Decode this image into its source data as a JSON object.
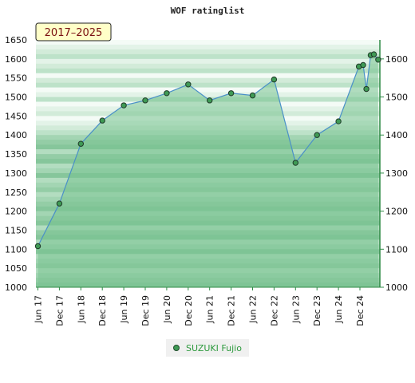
{
  "chart_data": {
    "type": "area",
    "title": "WOF ratinglist",
    "period_label": "2017–2025",
    "x_labels": [
      "Jun 17",
      "Dec 17",
      "Jun 18",
      "Dec 18",
      "Jun 19",
      "Dec 19",
      "Jun 20",
      "Dec 20",
      "Jun 21",
      "Dec 21",
      "Jun 22",
      "Dec 22",
      "Jun 23",
      "Dec 23",
      "Jun 24",
      "Dec 24"
    ],
    "y_left": {
      "min": 1000,
      "max": 1650,
      "step": 50
    },
    "y_right": {
      "min": 1000,
      "max": 1600,
      "step": 100
    },
    "grid": true,
    "legend_position": "bottom-center",
    "series": [
      {
        "name": "SUZUKI Fujio",
        "color": "#4a90c8",
        "marker_color": "#3f9a55",
        "points": [
          {
            "x": 0.0,
            "y": 1108
          },
          {
            "x": 1.0,
            "y": 1220
          },
          {
            "x": 2.0,
            "y": 1377
          },
          {
            "x": 3.0,
            "y": 1438
          },
          {
            "x": 4.0,
            "y": 1478
          },
          {
            "x": 5.0,
            "y": 1491
          },
          {
            "x": 6.0,
            "y": 1510
          },
          {
            "x": 7.0,
            "y": 1533
          },
          {
            "x": 8.0,
            "y": 1491
          },
          {
            "x": 9.0,
            "y": 1510
          },
          {
            "x": 10.0,
            "y": 1504
          },
          {
            "x": 11.0,
            "y": 1546
          },
          {
            "x": 12.0,
            "y": 1327
          },
          {
            "x": 13.0,
            "y": 1400
          },
          {
            "x": 14.0,
            "y": 1436
          },
          {
            "x": 14.95,
            "y": 1580
          },
          {
            "x": 15.15,
            "y": 1584
          },
          {
            "x": 15.3,
            "y": 1521
          },
          {
            "x": 15.5,
            "y": 1610
          },
          {
            "x": 15.65,
            "y": 1612
          },
          {
            "x": 15.85,
            "y": 1598
          }
        ]
      }
    ]
  }
}
